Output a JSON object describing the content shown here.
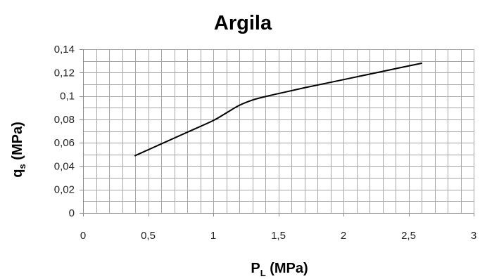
{
  "chart_data": {
    "type": "line",
    "title": "Argila",
    "xlabel": {
      "main": "P",
      "sub": "L",
      "unit": " (MPa)"
    },
    "ylabel": {
      "main": "q",
      "sub": "s",
      "unit": " (MPa)"
    },
    "xlim": [
      0,
      3
    ],
    "ylim": [
      0,
      0.14
    ],
    "x_ticks": [
      0,
      0.5,
      1,
      1.5,
      2,
      2.5,
      3
    ],
    "x_tick_labels": [
      "0",
      "0,5",
      "1",
      "1,5",
      "2",
      "2,5",
      "3"
    ],
    "y_ticks": [
      0,
      0.02,
      0.04,
      0.06,
      0.08,
      0.1,
      0.12,
      0.14
    ],
    "y_tick_labels": [
      "0",
      "0,02",
      "0,04",
      "0,06",
      "0,08",
      "0,1",
      "0,12",
      "0,14"
    ],
    "x_minor_step": 0.1,
    "y_minor_step": 0.01,
    "grid": true,
    "series": [
      {
        "color": "#000000",
        "x": [
          0.4,
          0.6,
          0.8,
          1.0,
          1.1,
          1.2,
          1.3,
          1.4,
          1.5,
          1.7,
          2.0,
          2.3,
          2.6
        ],
        "y": [
          0.049,
          0.059,
          0.069,
          0.079,
          0.0855,
          0.092,
          0.0965,
          0.0995,
          0.102,
          0.107,
          0.114,
          0.121,
          0.128
        ]
      }
    ]
  }
}
